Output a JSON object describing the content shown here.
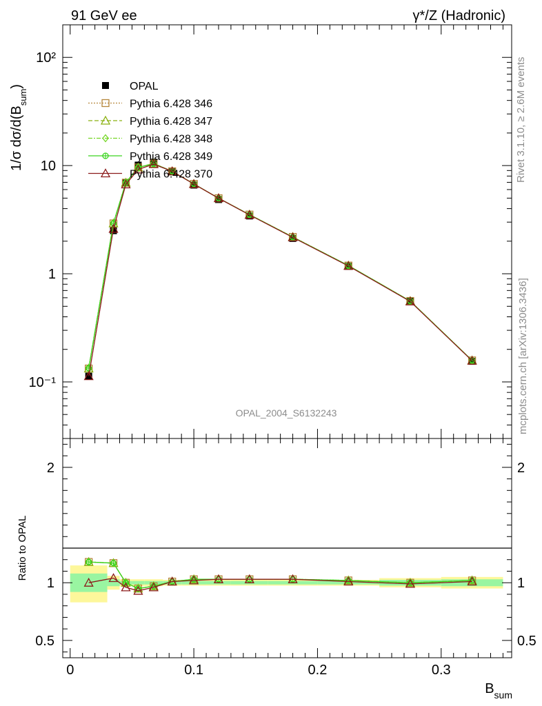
{
  "header": {
    "left_label": "91 GeV ee",
    "right_label": "γ*/Z (Hadronic)"
  },
  "side_labels": {
    "rivet": "Rivet 3.1.10, ≥ 2.6M events",
    "mcplots": "mcplots.cern.ch [arXiv:1306.3436]"
  },
  "watermark": "OPAL_2004_S6132243",
  "colors": {
    "OPAL": "#000000",
    "Pythia 6.428 346": "#b5863a",
    "Pythia 6.428 347": "#8ab010",
    "Pythia 6.428 348": "#74d624",
    "Pythia 6.428 349": "#3ad41e",
    "Pythia 6.428 370": "#8b1a1a",
    "band_inner": "#99f5a1",
    "band_outer": "#fdf79b"
  },
  "chart_data": [
    {
      "type": "line",
      "panel": "main",
      "ylabel": "1/σ dσ/d(B_sum)",
      "yscale": "log",
      "ylim": [
        0.03,
        200
      ],
      "xlim": [
        -0.006,
        0.357
      ],
      "x": [
        0.015,
        0.035,
        0.045,
        0.055,
        0.0675,
        0.0825,
        0.1,
        0.12,
        0.145,
        0.18,
        0.225,
        0.275,
        0.325
      ],
      "y_ticks": [
        0.1,
        1,
        10,
        100
      ],
      "y_tick_labels": [
        "10⁻¹",
        "1",
        "10",
        "10²"
      ],
      "legend_position": "top-left",
      "series": [
        {
          "name": "OPAL",
          "marker": "square-filled",
          "values": [
            0.113,
            2.5,
            6.95,
            10.1,
            10.75,
            8.75,
            6.6,
            4.85,
            3.42,
            2.12,
            1.17,
            0.56,
            0.155
          ]
        },
        {
          "name": "Pythia 6.428 346",
          "marker": "open-square",
          "values": [
            0.133,
            2.92,
            6.95,
            9.6,
            10.45,
            8.85,
            6.77,
            4.99,
            3.52,
            2.19,
            1.19,
            0.56,
            0.158
          ]
        },
        {
          "name": "Pythia 6.428 347",
          "marker": "open-triangle",
          "values": [
            0.133,
            2.92,
            6.95,
            9.6,
            10.45,
            8.85,
            6.77,
            4.99,
            3.52,
            2.19,
            1.19,
            0.56,
            0.158
          ]
        },
        {
          "name": "Pythia 6.428 348",
          "marker": "open-diamond",
          "values": [
            0.134,
            2.93,
            6.96,
            9.6,
            10.4,
            8.85,
            6.77,
            4.99,
            3.52,
            2.18,
            1.19,
            0.56,
            0.158
          ]
        },
        {
          "name": "Pythia 6.428 349",
          "marker": "crossed-circle",
          "values": [
            0.134,
            2.93,
            6.96,
            9.6,
            10.4,
            8.85,
            6.77,
            4.99,
            3.52,
            2.18,
            1.19,
            0.56,
            0.158
          ]
        },
        {
          "name": "Pythia 6.428 370",
          "marker": "open-triangle",
          "values": [
            0.113,
            2.6,
            6.7,
            9.2,
            10.3,
            8.85,
            6.75,
            4.99,
            3.5,
            2.17,
            1.18,
            0.555,
            0.157
          ]
        }
      ]
    },
    {
      "type": "line",
      "panel": "ratio",
      "ylabel": "Ratio to OPAL",
      "xlabel": "B_sum",
      "ylim": [
        0.35,
        2.25
      ],
      "x_ticks": [
        0,
        0.1,
        0.2,
        0.3
      ],
      "x_tick_labels": [
        "0",
        "0.1",
        "0.2",
        "0.3"
      ],
      "y_ticks": [
        0.5,
        1,
        2
      ],
      "y_tick_labels": [
        "0.5",
        "1",
        "2"
      ],
      "bins": [
        {
          "x0": 0.0,
          "x1": 0.03,
          "inner": [
            0.92,
            1.08
          ],
          "outer": [
            0.83,
            1.15
          ]
        },
        {
          "x0": 0.03,
          "x1": 0.04,
          "inner": [
            0.97,
            1.03
          ],
          "outer": [
            0.94,
            1.06
          ]
        },
        {
          "x0": 0.04,
          "x1": 0.05,
          "inner": [
            0.985,
            1.015
          ],
          "outer": [
            0.97,
            1.03
          ]
        },
        {
          "x0": 0.05,
          "x1": 0.06,
          "inner": [
            0.985,
            1.015
          ],
          "outer": [
            0.97,
            1.03
          ]
        },
        {
          "x0": 0.06,
          "x1": 0.075,
          "inner": [
            0.985,
            1.015
          ],
          "outer": [
            0.97,
            1.03
          ]
        },
        {
          "x0": 0.075,
          "x1": 0.09,
          "inner": [
            0.985,
            1.015
          ],
          "outer": [
            0.975,
            1.025
          ]
        },
        {
          "x0": 0.09,
          "x1": 0.11,
          "inner": [
            0.985,
            1.015
          ],
          "outer": [
            0.975,
            1.025
          ]
        },
        {
          "x0": 0.11,
          "x1": 0.13,
          "inner": [
            0.985,
            1.015
          ],
          "outer": [
            0.975,
            1.025
          ]
        },
        {
          "x0": 0.13,
          "x1": 0.16,
          "inner": [
            0.985,
            1.015
          ],
          "outer": [
            0.975,
            1.025
          ]
        },
        {
          "x0": 0.16,
          "x1": 0.2,
          "inner": [
            0.985,
            1.015
          ],
          "outer": [
            0.975,
            1.025
          ]
        },
        {
          "x0": 0.2,
          "x1": 0.25,
          "inner": [
            0.985,
            1.015
          ],
          "outer": [
            0.975,
            1.025
          ]
        },
        {
          "x0": 0.25,
          "x1": 0.3,
          "inner": [
            0.975,
            1.025
          ],
          "outer": [
            0.96,
            1.04
          ]
        },
        {
          "x0": 0.3,
          "x1": 0.35,
          "inner": [
            0.97,
            1.03
          ],
          "outer": [
            0.95,
            1.05
          ]
        }
      ],
      "x": [
        0.015,
        0.035,
        0.045,
        0.055,
        0.0675,
        0.0825,
        0.1,
        0.12,
        0.145,
        0.18,
        0.225,
        0.275,
        0.325
      ],
      "series": [
        {
          "name": "Pythia 6.428 346",
          "values": [
            1.18,
            1.17,
            1.0,
            0.95,
            0.97,
            1.01,
            1.03,
            1.03,
            1.03,
            1.03,
            1.02,
            1.0,
            1.02
          ]
        },
        {
          "name": "Pythia 6.428 347",
          "values": [
            1.18,
            1.17,
            1.0,
            0.95,
            0.97,
            1.01,
            1.03,
            1.03,
            1.03,
            1.03,
            1.02,
            1.0,
            1.02
          ]
        },
        {
          "name": "Pythia 6.428 348",
          "values": [
            1.18,
            1.17,
            1.0,
            0.95,
            0.97,
            1.01,
            1.03,
            1.03,
            1.03,
            1.03,
            1.02,
            1.0,
            1.02
          ]
        },
        {
          "name": "Pythia 6.428 349",
          "values": [
            1.18,
            1.17,
            1.0,
            0.95,
            0.97,
            1.01,
            1.03,
            1.03,
            1.03,
            1.03,
            1.02,
            1.0,
            1.02
          ]
        },
        {
          "name": "Pythia 6.428 370",
          "values": [
            1.0,
            1.04,
            0.96,
            0.93,
            0.96,
            1.01,
            1.02,
            1.03,
            1.03,
            1.03,
            1.01,
            0.99,
            1.01
          ]
        }
      ]
    }
  ]
}
